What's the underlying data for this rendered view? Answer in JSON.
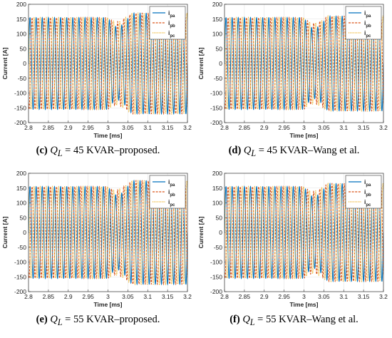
{
  "chart_data": [
    {
      "type": "line",
      "caption": {
        "letter": "(c)",
        "var": "Q",
        "sub": "L",
        "rest": " = 45 KVAR–proposed."
      },
      "xlabel": "Time [ms]",
      "ylabel": "Current [A]",
      "xlim": [
        2.8,
        3.2
      ],
      "ylim": [
        -200,
        200
      ],
      "xticks": [
        "2.8",
        "2.85",
        "2.9",
        "2.95",
        "3",
        "3.05",
        "3.1",
        "3.15",
        "3.2"
      ],
      "yticks": [
        "-200",
        "-150",
        "-100",
        "-50",
        "0",
        "50",
        "100",
        "150",
        "200"
      ],
      "grid": true,
      "legend_position": "top-right",
      "series": [
        {
          "name": "ipa",
          "base": "i",
          "sub": "pa",
          "style": "solid",
          "color": "#0072bd",
          "amplitude_before": 155,
          "amplitude_after": 170,
          "offset_after": 0,
          "phase_deg": 0
        },
        {
          "name": "ipb",
          "base": "i",
          "sub": "pb",
          "style": "dashed",
          "color": "#d95319",
          "amplitude_before": 155,
          "amplitude_after": 170,
          "offset_after": 0,
          "phase_deg": -120
        },
        {
          "name": "ipc",
          "base": "i",
          "sub": "pc",
          "style": "dotted",
          "color": "#edb120",
          "amplitude_before": 155,
          "amplitude_after": 170,
          "offset_after": 0,
          "phase_deg": 120
        }
      ],
      "disturbance_time": 3.0,
      "cycles_per_window": 26
    },
    {
      "type": "line",
      "caption": {
        "letter": "(d)",
        "var": "Q",
        "sub": "L",
        "rest": " = 45 KVAR–Wang et al."
      },
      "xlabel": "Time [ms]",
      "ylabel": "Current [A]",
      "xlim": [
        2.8,
        3.2
      ],
      "ylim": [
        -200,
        200
      ],
      "xticks": [
        "2.8",
        "2.85",
        "2.9",
        "2.95",
        "3",
        "3.05",
        "3.1",
        "3.15",
        "3.2"
      ],
      "yticks": [
        "-200",
        "-150",
        "-100",
        "-50",
        "0",
        "50",
        "100",
        "150",
        "200"
      ],
      "grid": true,
      "legend_position": "top-right",
      "series": [
        {
          "name": "ipa",
          "base": "i",
          "sub": "pa",
          "style": "solid",
          "color": "#0072bd",
          "amplitude_before": 155,
          "amplitude_after": 160,
          "offset_after": 0,
          "phase_deg": 0
        },
        {
          "name": "ipb",
          "base": "i",
          "sub": "pb",
          "style": "dashed",
          "color": "#d95319",
          "amplitude_before": 155,
          "amplitude_after": 160,
          "offset_after": 0,
          "phase_deg": -120
        },
        {
          "name": "ipc",
          "base": "i",
          "sub": "pc",
          "style": "dotted",
          "color": "#edb120",
          "amplitude_before": 155,
          "amplitude_after": 160,
          "offset_after": 0,
          "phase_deg": 120
        }
      ],
      "disturbance_time": 3.0,
      "cycles_per_window": 26
    },
    {
      "type": "line",
      "caption": {
        "letter": "(e)",
        "var": "Q",
        "sub": "L",
        "rest": " = 55 KVAR–proposed."
      },
      "xlabel": "Time [ms]",
      "ylabel": "Current [A]",
      "xlim": [
        2.8,
        3.2
      ],
      "ylim": [
        -200,
        200
      ],
      "xticks": [
        "2.8",
        "2.85",
        "2.9",
        "2.95",
        "3",
        "3.05",
        "3.1",
        "3.15",
        "3.2"
      ],
      "yticks": [
        "-200",
        "-150",
        "-100",
        "-50",
        "0",
        "50",
        "100",
        "150",
        "200"
      ],
      "grid": true,
      "legend_position": "top-right",
      "series": [
        {
          "name": "ipa",
          "base": "i",
          "sub": "pa",
          "style": "solid",
          "color": "#0072bd",
          "amplitude_before": 155,
          "amplitude_after": 175,
          "offset_after": 0,
          "phase_deg": 0
        },
        {
          "name": "ipb",
          "base": "i",
          "sub": "pb",
          "style": "dashed",
          "color": "#d95319",
          "amplitude_before": 155,
          "amplitude_after": 175,
          "offset_after": 0,
          "phase_deg": -120
        },
        {
          "name": "ipc",
          "base": "i",
          "sub": "pc",
          "style": "dotted",
          "color": "#edb120",
          "amplitude_before": 155,
          "amplitude_after": 175,
          "offset_after": 0,
          "phase_deg": 120
        }
      ],
      "disturbance_time": 3.0,
      "cycles_per_window": 26
    },
    {
      "type": "line",
      "caption": {
        "letter": "(f)",
        "var": "Q",
        "sub": "L",
        "rest": " = 55 KVAR–Wang et al."
      },
      "xlabel": "Time [ms]",
      "ylabel": "Current [A]",
      "xlim": [
        2.8,
        3.2
      ],
      "ylim": [
        -200,
        200
      ],
      "xticks": [
        "2.8",
        "2.85",
        "2.9",
        "2.95",
        "3",
        "3.05",
        "3.1",
        "3.15",
        "3.2"
      ],
      "yticks": [
        "-200",
        "-150",
        "-100",
        "-50",
        "0",
        "50",
        "100",
        "150",
        "200"
      ],
      "grid": true,
      "legend_position": "top-right",
      "series": [
        {
          "name": "ipa",
          "base": "i",
          "sub": "pa",
          "style": "solid",
          "color": "#0072bd",
          "amplitude_before": 155,
          "amplitude_after": 165,
          "offset_after": 0,
          "phase_deg": 0
        },
        {
          "name": "ipb",
          "base": "i",
          "sub": "pb",
          "style": "dashed",
          "color": "#d95319",
          "amplitude_before": 155,
          "amplitude_after": 165,
          "offset_after": 0,
          "phase_deg": -120
        },
        {
          "name": "ipc",
          "base": "i",
          "sub": "pc",
          "style": "dotted",
          "color": "#edb120",
          "amplitude_before": 155,
          "amplitude_after": 165,
          "offset_after": 0,
          "phase_deg": 120
        }
      ],
      "disturbance_time": 3.0,
      "cycles_per_window": 26
    }
  ]
}
